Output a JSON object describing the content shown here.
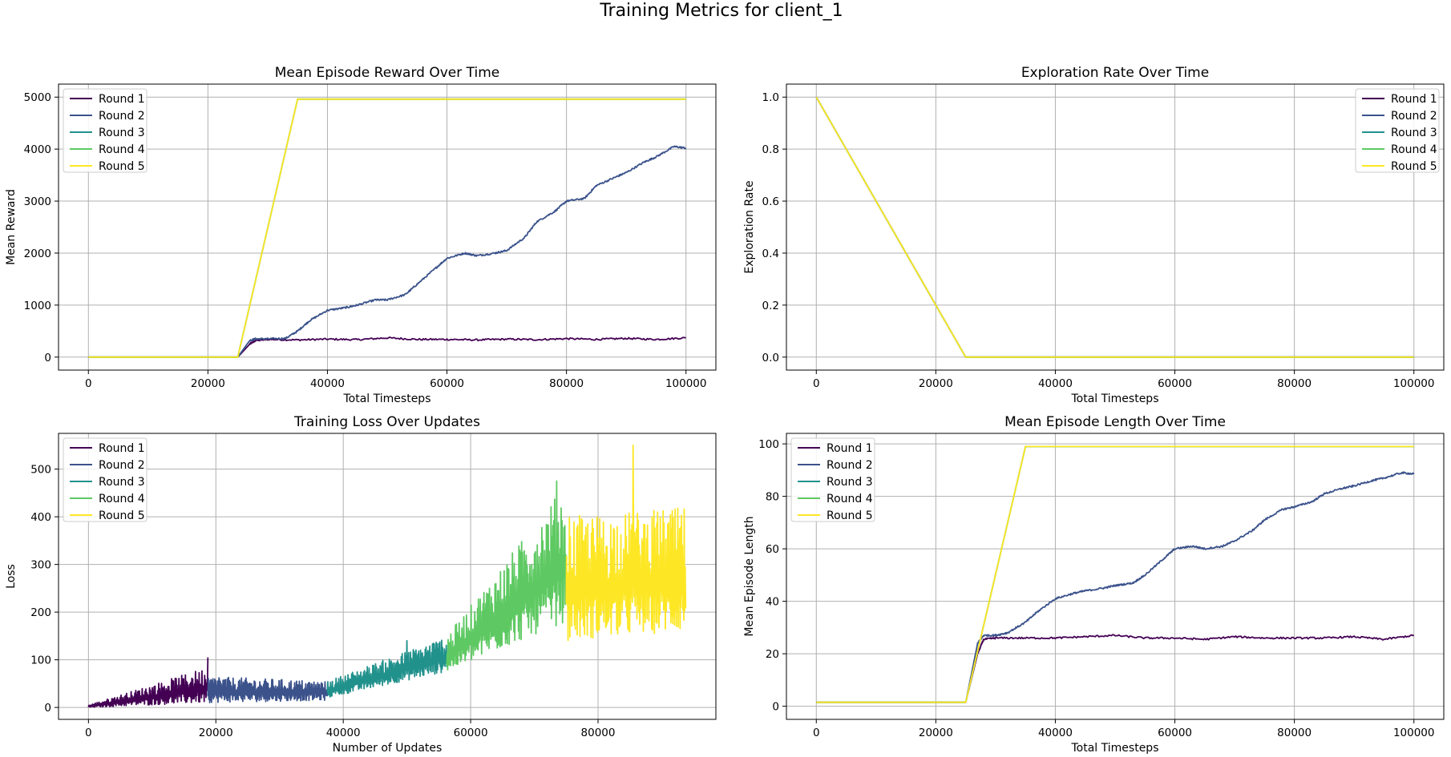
{
  "figure_title": "Training Metrics for client_1",
  "colors": {
    "round_1": "#440154",
    "round_2": "#3b528b",
    "round_3": "#21918c",
    "round_4": "#5ec962",
    "round_5": "#fde725",
    "grid": "#b0b0b0",
    "axis": "#000000"
  },
  "chart_data": [
    {
      "type": "line",
      "title": "Mean Episode Reward Over Time",
      "xlabel": "Total Timesteps",
      "ylabel": "Mean Reward",
      "xlim": [
        -5000,
        105000
      ],
      "ylim": [
        -250,
        5250
      ],
      "xticks": [
        0,
        20000,
        40000,
        60000,
        80000,
        100000
      ],
      "yticks": [
        0,
        1000,
        2000,
        3000,
        4000,
        5000
      ],
      "grid": true,
      "legend": "upper left",
      "series": [
        {
          "name": "Round 1",
          "x": [
            0,
            25000,
            27000,
            28000,
            30000,
            35000,
            40000,
            45000,
            50000,
            55000,
            60000,
            65000,
            70000,
            75000,
            80000,
            85000,
            90000,
            95000,
            100000
          ],
          "y": [
            0,
            0,
            250,
            320,
            340,
            330,
            345,
            335,
            370,
            340,
            340,
            330,
            345,
            335,
            355,
            340,
            360,
            340,
            370
          ]
        },
        {
          "name": "Round 2",
          "x": [
            0,
            25000,
            27000,
            28000,
            30000,
            33000,
            35000,
            37000,
            40000,
            43000,
            45000,
            48000,
            50000,
            53000,
            55000,
            58000,
            60000,
            63000,
            65000,
            68000,
            70000,
            73000,
            75000,
            78000,
            80000,
            83000,
            85000,
            88000,
            90000,
            93000,
            95000,
            98000,
            100000
          ],
          "y": [
            0,
            0,
            320,
            350,
            350,
            360,
            500,
            700,
            900,
            950,
            1000,
            1100,
            1100,
            1200,
            1400,
            1700,
            1900,
            2000,
            1950,
            2000,
            2050,
            2300,
            2600,
            2800,
            3000,
            3050,
            3300,
            3450,
            3550,
            3750,
            3850,
            4050,
            4020
          ]
        },
        {
          "name": "Round 3",
          "x": [
            0,
            25000,
            35000,
            100000
          ],
          "y": [
            0,
            0,
            4960,
            4960
          ]
        },
        {
          "name": "Round 4",
          "x": [
            0,
            25000,
            35000,
            100000
          ],
          "y": [
            0,
            0,
            4960,
            4960
          ]
        },
        {
          "name": "Round 5",
          "x": [
            0,
            25000,
            35000,
            100000
          ],
          "y": [
            0,
            0,
            4960,
            4960
          ]
        }
      ]
    },
    {
      "type": "line",
      "title": "Exploration Rate Over Time",
      "xlabel": "Total Timesteps",
      "ylabel": "Exploration Rate",
      "xlim": [
        -5000,
        105000
      ],
      "ylim": [
        -0.05,
        1.05
      ],
      "xticks": [
        0,
        20000,
        40000,
        60000,
        80000,
        100000
      ],
      "yticks": [
        0.0,
        0.2,
        0.4,
        0.6,
        0.8,
        1.0
      ],
      "ytick_labels": [
        "0.0",
        "0.2",
        "0.4",
        "0.6",
        "0.8",
        "1.0"
      ],
      "grid": true,
      "legend": "upper right",
      "series": [
        {
          "name": "Round 1",
          "x": [
            0,
            25000,
            100000
          ],
          "y": [
            1.0,
            0.0,
            0.0
          ]
        },
        {
          "name": "Round 2",
          "x": [
            0,
            25000,
            100000
          ],
          "y": [
            1.0,
            0.0,
            0.0
          ]
        },
        {
          "name": "Round 3",
          "x": [
            0,
            25000,
            100000
          ],
          "y": [
            1.0,
            0.0,
            0.0
          ]
        },
        {
          "name": "Round 4",
          "x": [
            0,
            25000,
            100000
          ],
          "y": [
            1.0,
            0.0,
            0.0
          ]
        },
        {
          "name": "Round 5",
          "x": [
            0,
            25000,
            100000
          ],
          "y": [
            1.0,
            0.0,
            0.0
          ]
        }
      ]
    },
    {
      "type": "line",
      "title": "Training Loss Over Updates",
      "xlabel": "Number of Updates",
      "ylabel": "Loss",
      "xlim": [
        -4700,
        98500
      ],
      "ylim": [
        -25,
        575
      ],
      "xticks": [
        0,
        20000,
        40000,
        60000,
        80000
      ],
      "yticks": [
        0,
        100,
        200,
        300,
        400,
        500
      ],
      "grid": true,
      "legend": "upper left",
      "series": [
        {
          "name": "Round 1",
          "x_range": [
            0,
            18750
          ],
          "low": [
            0,
            10
          ],
          "high": [
            5,
            85
          ],
          "peak": [
            18750,
            105
          ]
        },
        {
          "name": "Round 2",
          "x_range": [
            18750,
            37500
          ],
          "low": [
            10,
            15
          ],
          "high": [
            65,
            55
          ],
          "peak": [
            20500,
            62
          ]
        },
        {
          "name": "Round 3",
          "x_range": [
            37500,
            56250
          ],
          "low": [
            20,
            75
          ],
          "high": [
            55,
            150
          ],
          "peak": [
            50000,
            140
          ]
        },
        {
          "name": "Round 4",
          "x_range": [
            56250,
            75000
          ],
          "low": [
            75,
            180
          ],
          "high": [
            150,
            470
          ],
          "peak": [
            73500,
            475
          ]
        },
        {
          "name": "Round 5",
          "x_range": [
            75000,
            93750
          ],
          "low": [
            140,
            160
          ],
          "high": [
            400,
            420
          ],
          "peak": [
            85500,
            550
          ]
        }
      ]
    },
    {
      "type": "line",
      "title": "Mean Episode Length Over Time",
      "xlabel": "Total Timesteps",
      "ylabel": "Mean Episode Length",
      "xlim": [
        -5000,
        105000
      ],
      "ylim": [
        -5,
        104
      ],
      "xticks": [
        0,
        20000,
        40000,
        60000,
        80000,
        100000
      ],
      "yticks": [
        0,
        20,
        40,
        60,
        80,
        100
      ],
      "grid": true,
      "legend": "upper left",
      "series": [
        {
          "name": "Round 1",
          "x": [
            0,
            25000,
            27000,
            28000,
            30000,
            35000,
            40000,
            45000,
            50000,
            55000,
            60000,
            65000,
            70000,
            75000,
            80000,
            85000,
            90000,
            95000,
            100000
          ],
          "y": [
            1.5,
            1.5,
            20,
            25.5,
            26,
            26,
            26,
            26.5,
            27,
            26,
            26,
            25.5,
            26.5,
            26,
            26,
            26,
            26.5,
            25.5,
            27
          ]
        },
        {
          "name": "Round 2",
          "x": [
            0,
            25000,
            27000,
            28000,
            30000,
            32000,
            35000,
            37000,
            40000,
            43000,
            45000,
            48000,
            50000,
            53000,
            55000,
            58000,
            60000,
            63000,
            65000,
            68000,
            70000,
            73000,
            75000,
            78000,
            80000,
            83000,
            85000,
            88000,
            90000,
            93000,
            95000,
            98000,
            100000
          ],
          "y": [
            1.5,
            1.5,
            24,
            27,
            27,
            28,
            32,
            36,
            41,
            43,
            44,
            45,
            46,
            47,
            50,
            56,
            60,
            61,
            60,
            61,
            63,
            67,
            71,
            75,
            76,
            78,
            81,
            83,
            84,
            86,
            87,
            89,
            88.5
          ]
        },
        {
          "name": "Round 3",
          "x": [
            0,
            25000,
            35000,
            100000
          ],
          "y": [
            1.5,
            1.5,
            99,
            99
          ]
        },
        {
          "name": "Round 4",
          "x": [
            0,
            25000,
            35000,
            100000
          ],
          "y": [
            1.5,
            1.5,
            99,
            99
          ]
        },
        {
          "name": "Round 5",
          "x": [
            0,
            25000,
            35000,
            100000
          ],
          "y": [
            1.5,
            1.5,
            99,
            99
          ]
        }
      ]
    }
  ]
}
